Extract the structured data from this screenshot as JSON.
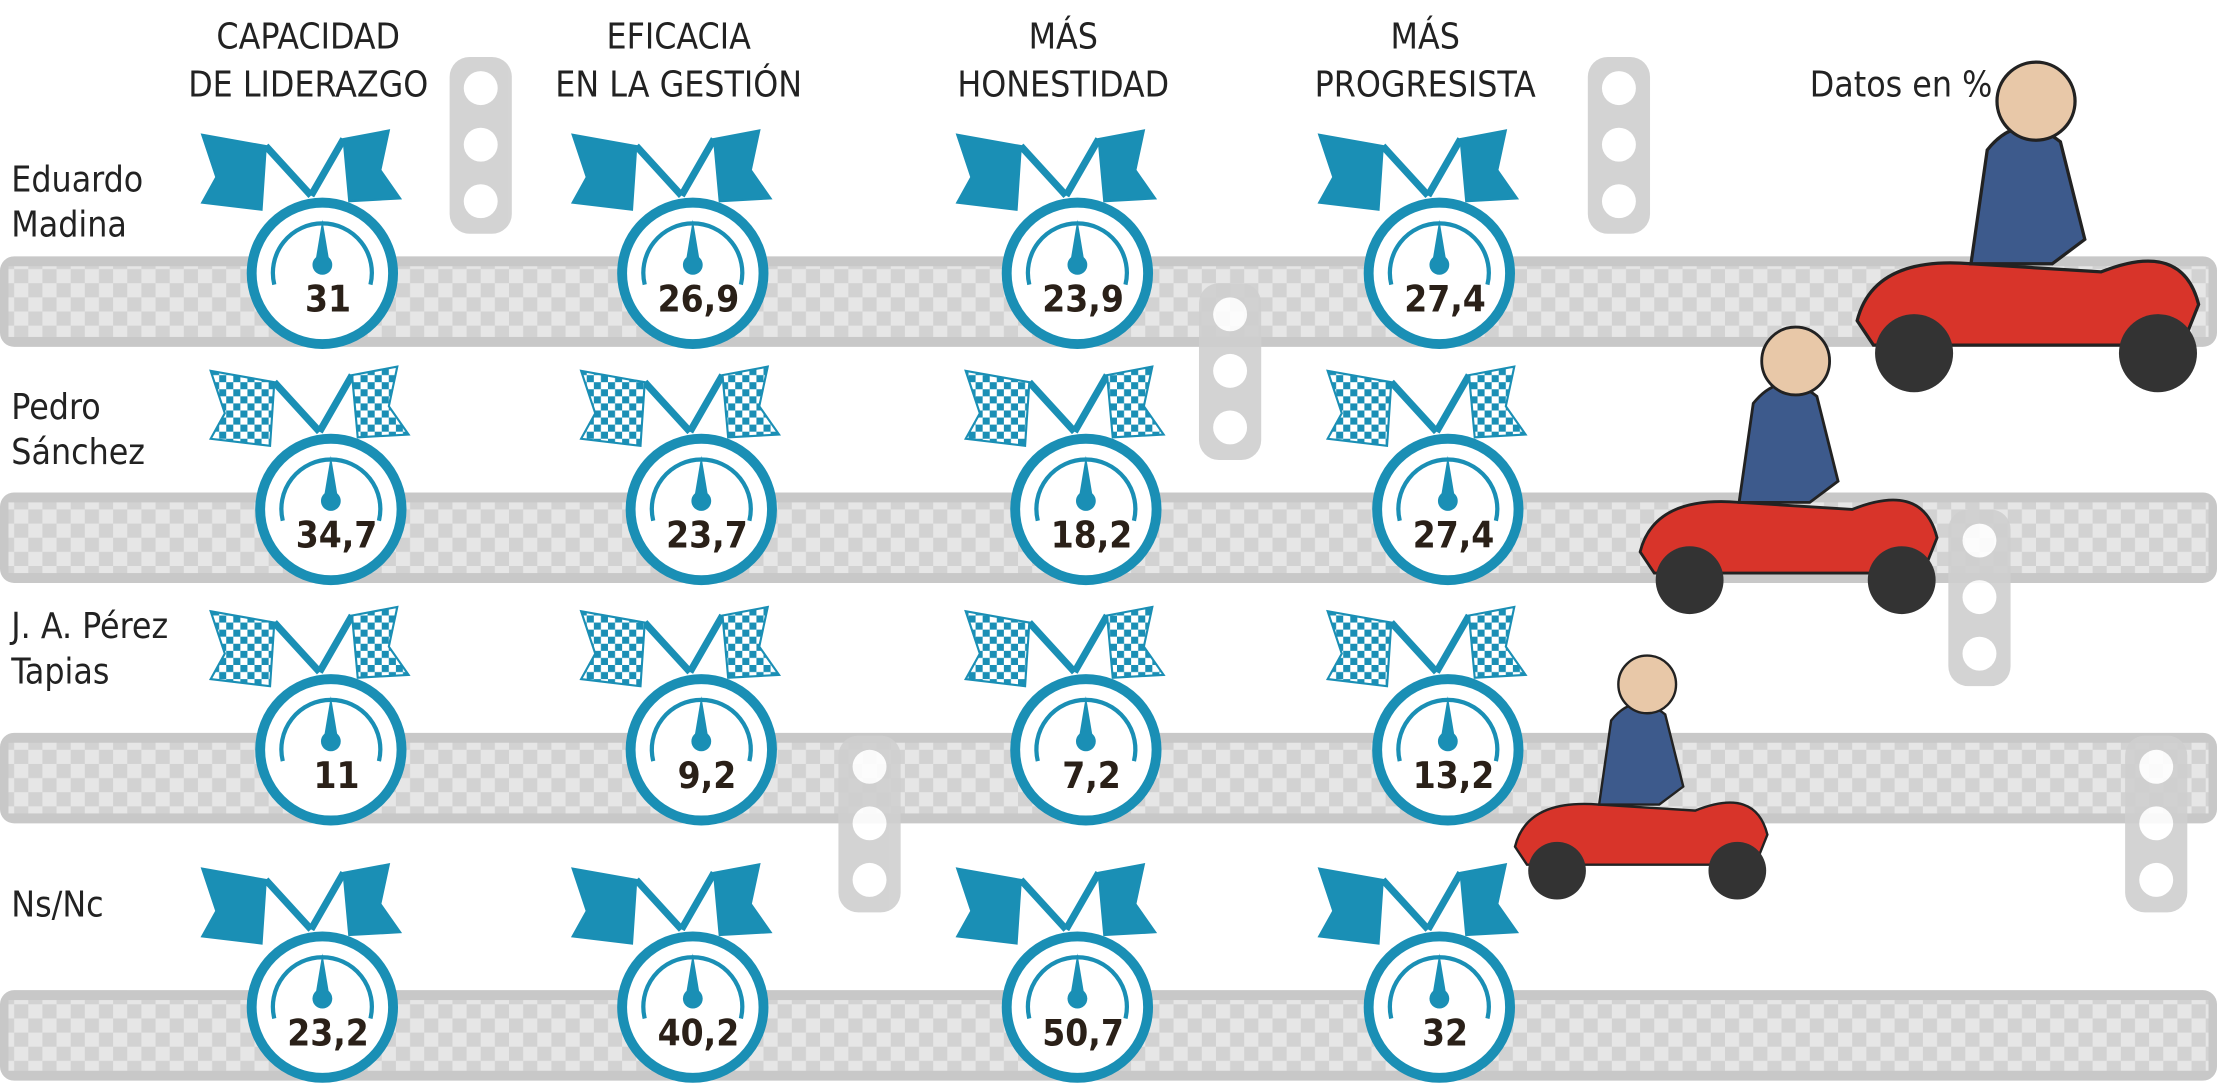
{
  "header": {
    "columns": [
      [
        "CAPACIDAD",
        "DE LIDERAZGO"
      ],
      [
        "EFICACIA",
        "EN LA GESTIÓN"
      ],
      [
        "MÁS",
        "HONESTIDAD"
      ],
      [
        "MÁS",
        "PROGRESISTA"
      ]
    ],
    "note": "Datos en %"
  },
  "rows": [
    {
      "name": [
        "Eduardo",
        "Madina"
      ],
      "values": [
        "31",
        "26,9",
        "23,9",
        "27,4"
      ]
    },
    {
      "name": [
        "Pedro",
        "Sánchez"
      ],
      "values": [
        "34,7",
        "23,7",
        "18,2",
        "27,4"
      ]
    },
    {
      "name": [
        "J. A. Pérez",
        "Tapias"
      ],
      "values": [
        "11",
        "9,2",
        "7,2",
        "13,2"
      ]
    },
    {
      "name": [
        "Ns/Nc"
      ],
      "values": [
        "23,2",
        "40,2",
        "50,7",
        "32"
      ]
    }
  ]
}
